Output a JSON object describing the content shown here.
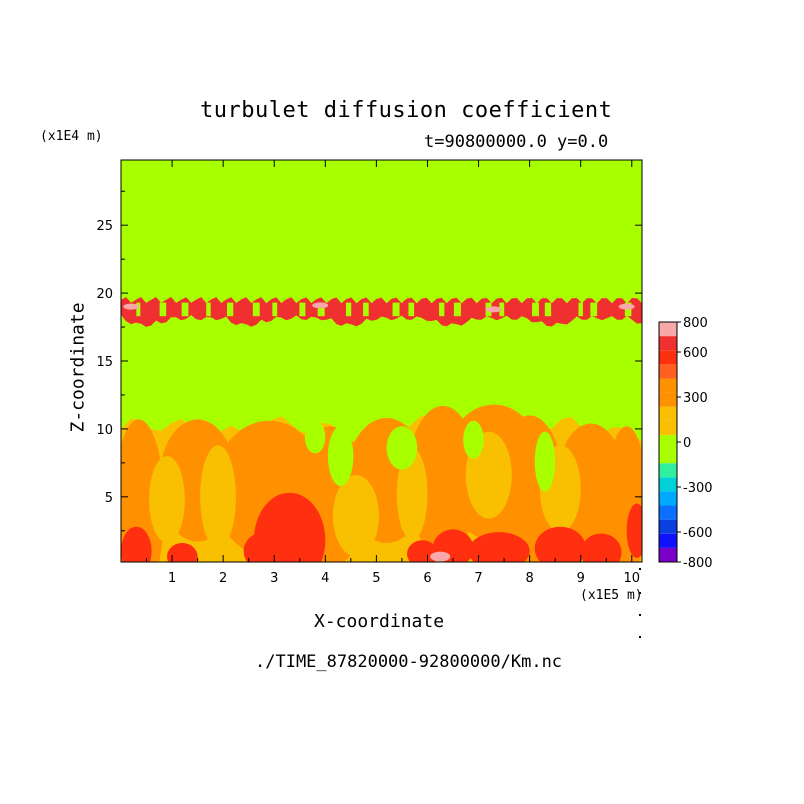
{
  "chart_data": {
    "type": "heatmap",
    "title": "turbulet diffusion coefficient",
    "subtitle": "t=90800000.0 y=0.0",
    "xlabel": "X-coordinate",
    "ylabel": "Z-coordinate",
    "x_unit": "(x1E5 m)",
    "z_unit": "(x1E4 m)",
    "x_ticks": [
      "1",
      "2",
      "3",
      "4",
      "5",
      "6",
      "7",
      "8",
      "9",
      "10"
    ],
    "z_ticks": [
      "5",
      "10",
      "15",
      "20",
      "25"
    ],
    "xlim": [
      0,
      10.2
    ],
    "zlim": [
      0.2,
      29.8
    ],
    "colorbar": {
      "levels": [
        -800,
        -700,
        -600,
        -500,
        -400,
        -300,
        -200,
        -100,
        0,
        100,
        200,
        300,
        400,
        500,
        600,
        700,
        800
      ],
      "tick_labels": [
        "800",
        "600",
        "300",
        "0",
        "-300",
        "-600",
        "-800"
      ],
      "colors": [
        "#7a00c8",
        "#1010ff",
        "#0a40e0",
        "#0a70ff",
        "#00a8ff",
        "#00d0d8",
        "#30f0a0",
        "#a8ff00",
        "#a8ff00",
        "#f8c000",
        "#f8c000",
        "#ff9000",
        "#ff9000",
        "#ff6020",
        "#ff3010",
        "#f03030",
        "#f8a8a8"
      ]
    },
    "regions": [
      {
        "name": "background",
        "value": 0
      },
      {
        "name": "upper turbulent band",
        "zrange": [
          17.5,
          19.8
        ],
        "value": 600
      },
      {
        "name": "lower turbulent layer",
        "zrange": [
          0.2,
          10.5
        ],
        "value": 300
      },
      {
        "name": "strong eddies",
        "value": 600
      }
    ],
    "grid": false,
    "legend": "right colorbar"
  },
  "source_file": "./TIME_87820000-92800000/Km.nc"
}
